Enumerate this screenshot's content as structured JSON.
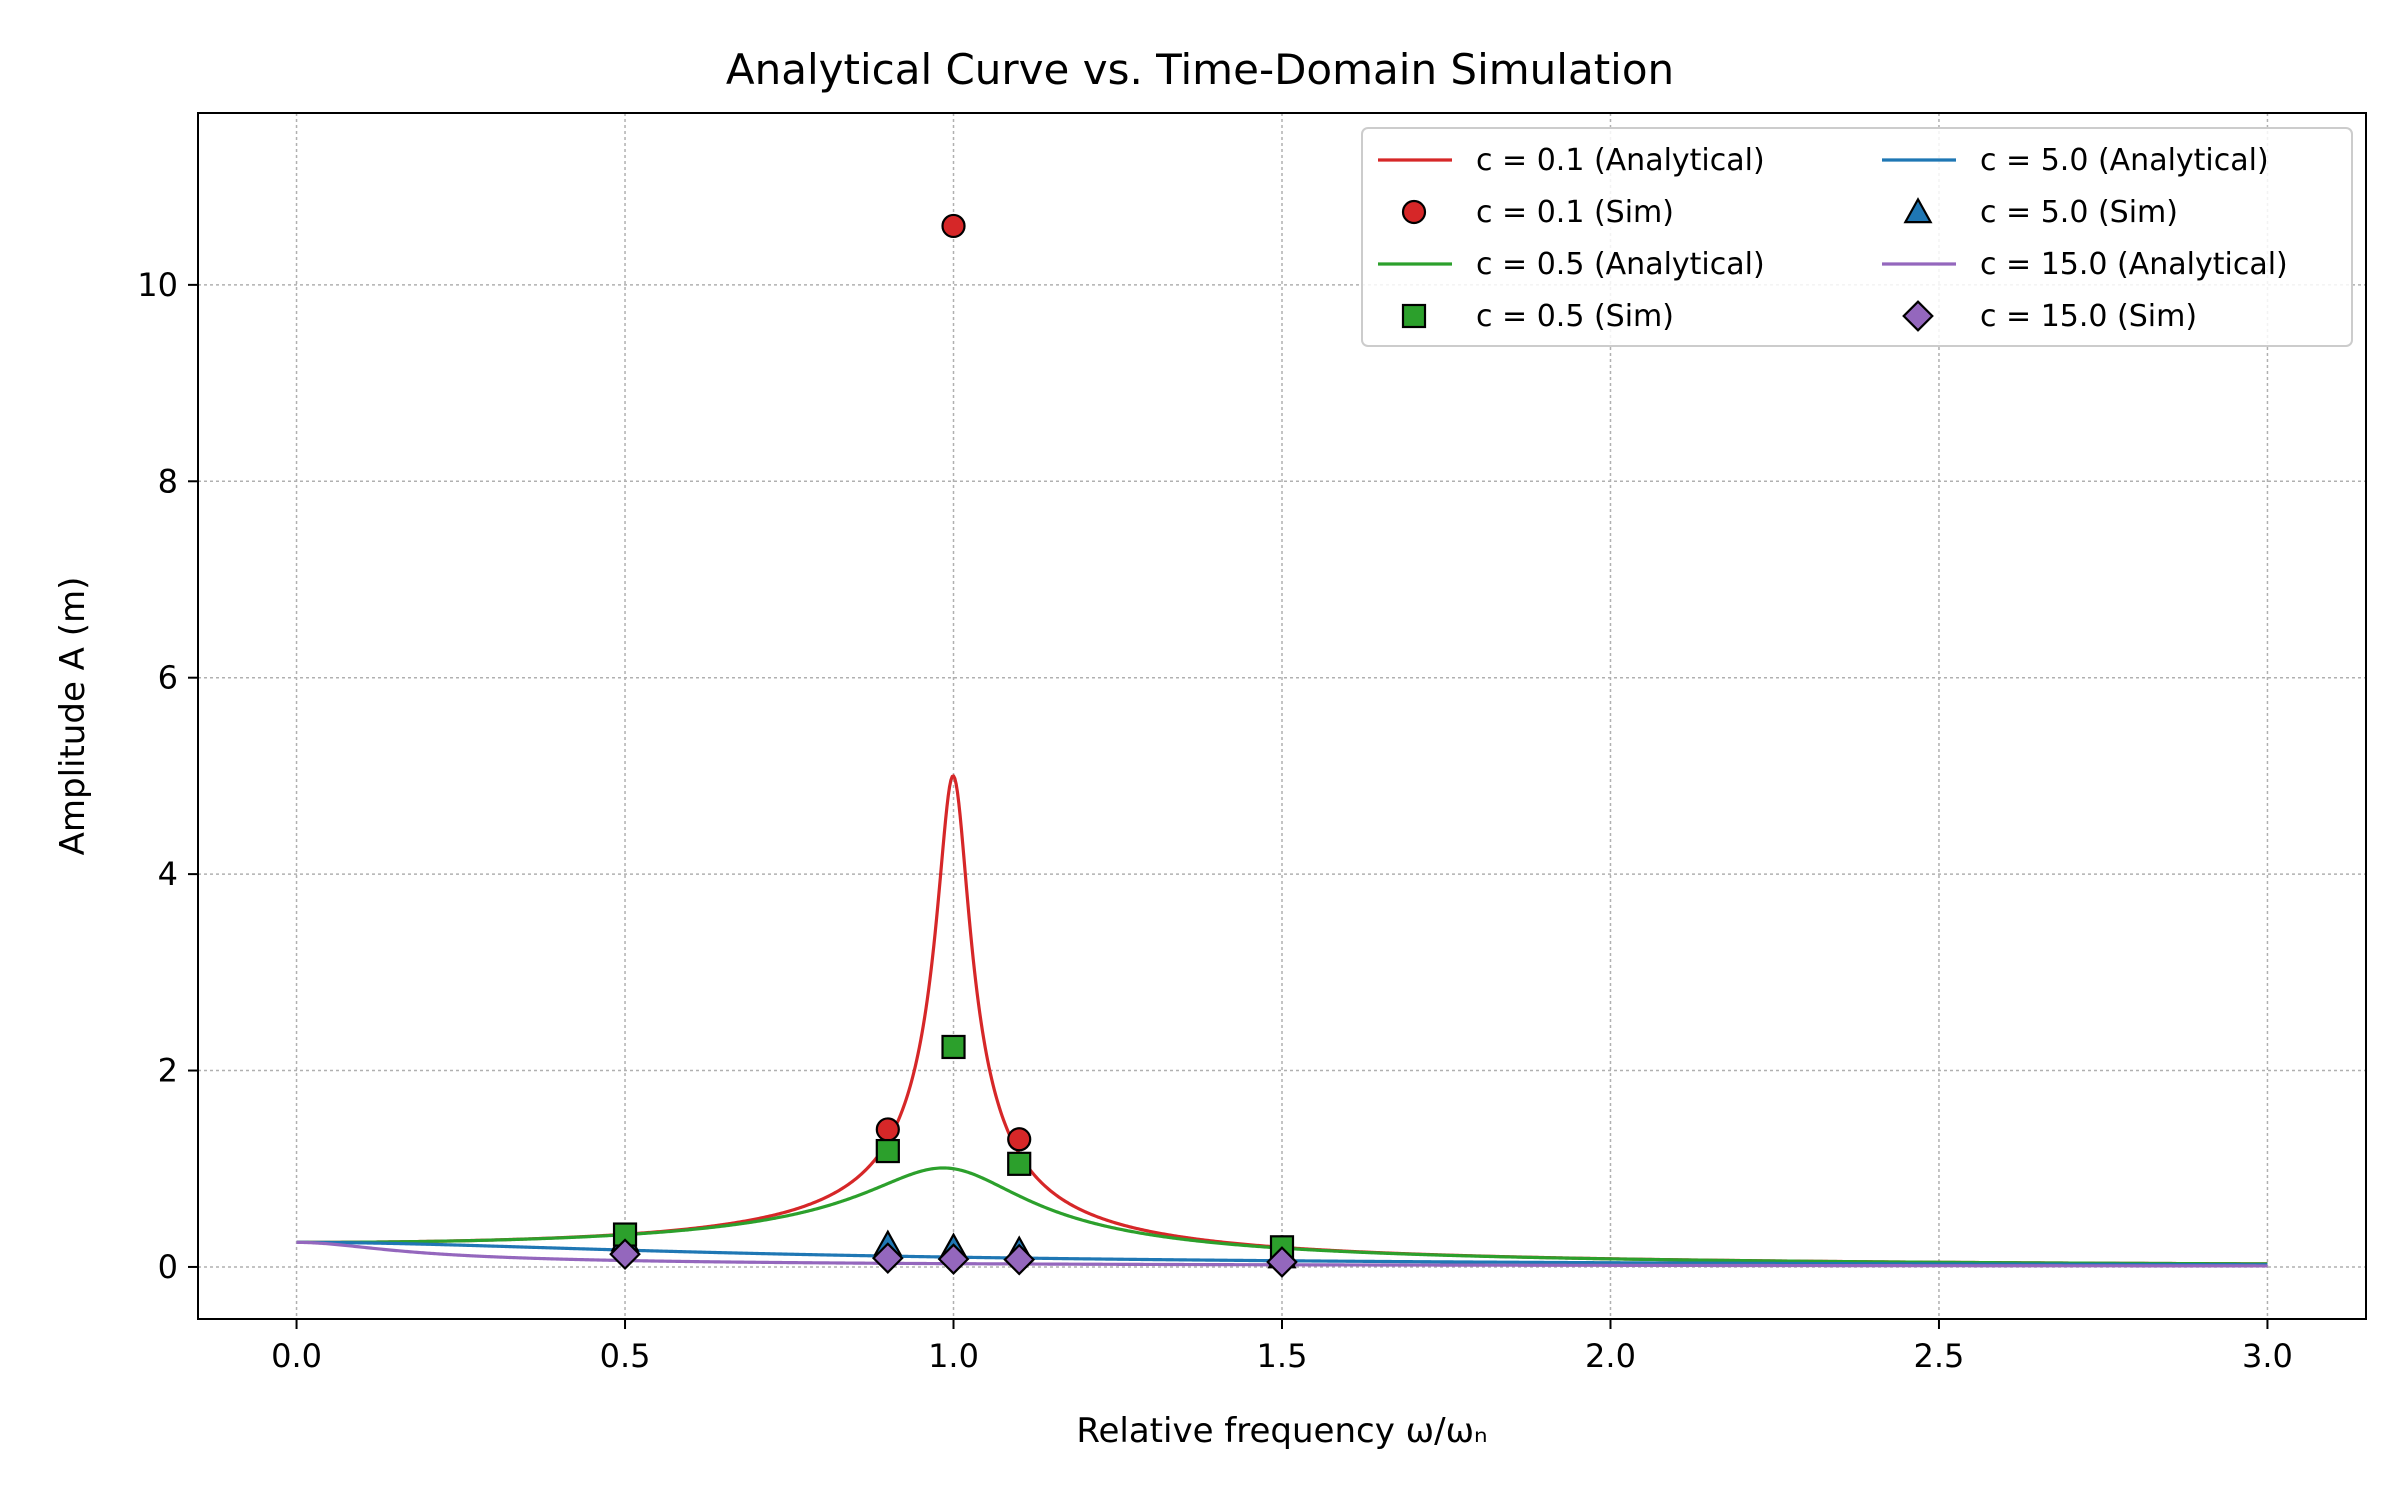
{
  "chart_data": {
    "type": "line",
    "title": "Analytical Curve vs. Time-Domain Simulation",
    "xlabel": "Relative frequency ω/ωₙ",
    "ylabel": "Amplitude A (m)",
    "xlim": [
      -0.15,
      3.15
    ],
    "ylim": [
      -0.53,
      11.75
    ],
    "xticks": [
      "0.0",
      "0.5",
      "1.0",
      "1.5",
      "2.0",
      "2.5",
      "3.0"
    ],
    "xtick_values": [
      0.0,
      0.5,
      1.0,
      1.5,
      2.0,
      2.5,
      3.0
    ],
    "yticks": [
      "0",
      "2",
      "4",
      "6",
      "8",
      "10"
    ],
    "ytick_values": [
      0,
      2,
      4,
      6,
      8,
      10
    ],
    "grid": true,
    "legend_position": "top-right",
    "model": {
      "stiffness": 4.0,
      "mass": 1.0,
      "force": 1.0,
      "x_range": [
        0.0,
        3.0
      ]
    },
    "series": [
      {
        "name": "c = 0.1",
        "damping": 0.1,
        "color": "#d62728",
        "marker": "circle",
        "analytical_label": "c = 0.1 (Analytical)",
        "sim_label": "c = 0.1 (Sim)",
        "sim_x": [
          0.5,
          0.9,
          1.0,
          1.1,
          1.5
        ],
        "sim_y": [
          0.33,
          1.4,
          10.6,
          1.3,
          0.2
        ]
      },
      {
        "name": "c = 0.5",
        "damping": 0.5,
        "color": "#2ca02c",
        "marker": "square",
        "analytical_label": "c = 0.5 (Analytical)",
        "sim_label": "c = 0.5 (Sim)",
        "sim_x": [
          0.5,
          0.9,
          1.0,
          1.1,
          1.5
        ],
        "sim_y": [
          0.33,
          1.18,
          2.24,
          1.05,
          0.2
        ]
      },
      {
        "name": "c = 5.0",
        "damping": 5.0,
        "color": "#1f77b4",
        "marker": "triangle",
        "analytical_label": "c = 5.0 (Analytical)",
        "sim_label": "c = 5.0 (Sim)",
        "sim_x": [
          0.5,
          0.9,
          1.0,
          1.1,
          1.5
        ],
        "sim_y": [
          0.27,
          0.23,
          0.2,
          0.17,
          0.1
        ]
      },
      {
        "name": "c = 15.0",
        "damping": 15.0,
        "color": "#9467bd",
        "marker": "diamond",
        "analytical_label": "c = 15.0 (Analytical)",
        "sim_label": "c = 15.0 (Sim)",
        "sim_x": [
          0.5,
          0.9,
          1.0,
          1.1,
          1.5
        ],
        "sim_y": [
          0.13,
          0.09,
          0.08,
          0.075,
          0.05
        ]
      }
    ]
  }
}
